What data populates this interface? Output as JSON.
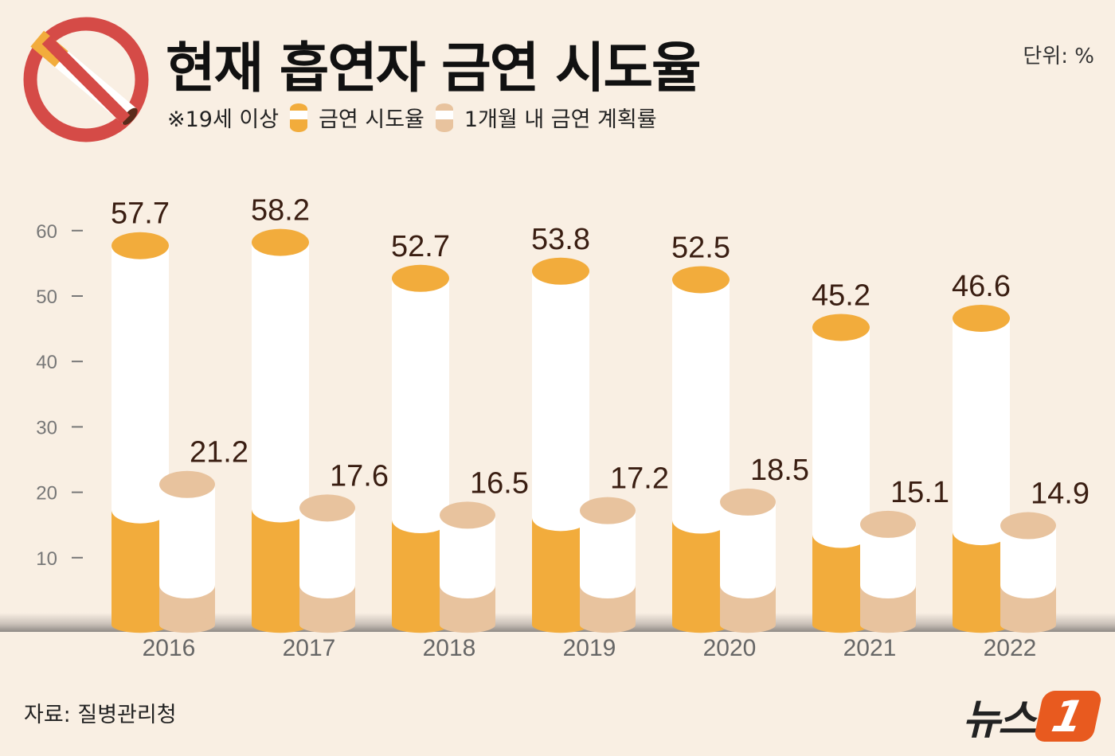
{
  "title": "현재 흡연자 금연 시도율",
  "unit": "단위: %",
  "note": "※19세 이상",
  "source": "자료: 질병관리청",
  "logo": {
    "text": "뉴스",
    "mark": "1"
  },
  "icon": "no-smoking-icon",
  "colors": {
    "background": "#f9efe3",
    "attempt": "#f2ac3c",
    "plan": "#e8c39e",
    "label": "#3a1e12",
    "no_smoking_red": "#d54b47"
  },
  "chart_data": {
    "type": "bar",
    "title": "현재 흡연자 금연 시도율",
    "categories": [
      "2016",
      "2017",
      "2018",
      "2019",
      "2020",
      "2021",
      "2022"
    ],
    "series": [
      {
        "name": "금연 시도율",
        "values": [
          57.7,
          58.2,
          52.7,
          53.8,
          52.5,
          45.2,
          46.6
        ]
      },
      {
        "name": "1개월 내 금연 계획률",
        "values": [
          21.2,
          17.6,
          16.5,
          17.2,
          18.5,
          15.1,
          14.9
        ]
      }
    ],
    "yticks": [
      10,
      20,
      30,
      40,
      50,
      60
    ],
    "ylim": [
      0,
      70
    ],
    "grid": false,
    "legend": "top-left"
  }
}
